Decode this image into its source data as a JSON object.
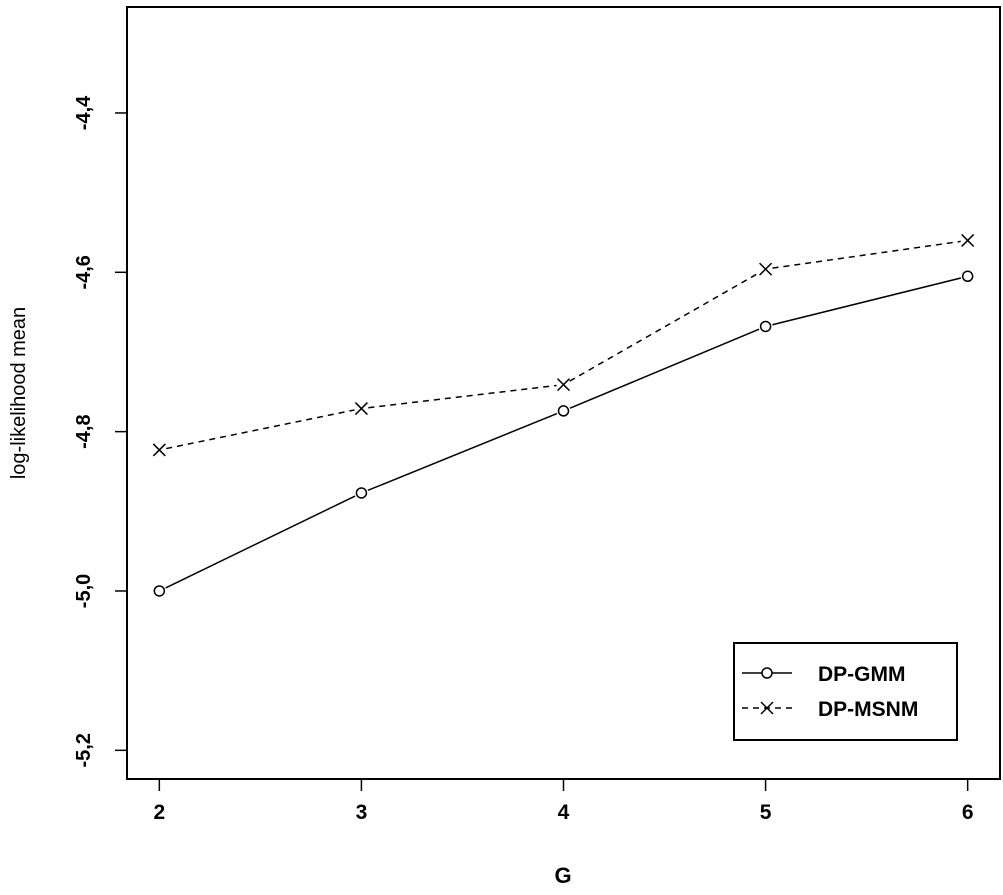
{
  "chart_data": {
    "type": "line",
    "title": "",
    "xlabel": "G",
    "ylabel": "log-likelihood mean",
    "x": [
      2,
      3,
      4,
      5,
      6
    ],
    "xlim": [
      1.84,
      6.16
    ],
    "ylim": [
      -5.236,
      -4.267
    ],
    "xticks": [
      "2",
      "3",
      "4",
      "5",
      "6"
    ],
    "yticks": [
      -4.4,
      -4.6,
      -4.8,
      -5.0,
      -5.2
    ],
    "ytick_labels": [
      "-4,4",
      "-4,6",
      "-4,8",
      "-5,0",
      "-5,2"
    ],
    "grid": false,
    "legend_position": "bottom-right",
    "series": [
      {
        "name": "DP-GMM",
        "values": [
          -5.0,
          -4.877,
          -4.774,
          -4.668,
          -4.605
        ],
        "line": "solid",
        "marker": "circle"
      },
      {
        "name": "DP-MSNM",
        "values": [
          -4.823,
          -4.771,
          -4.741,
          -4.596,
          -4.56
        ],
        "line": "dashed",
        "marker": "x"
      }
    ]
  }
}
